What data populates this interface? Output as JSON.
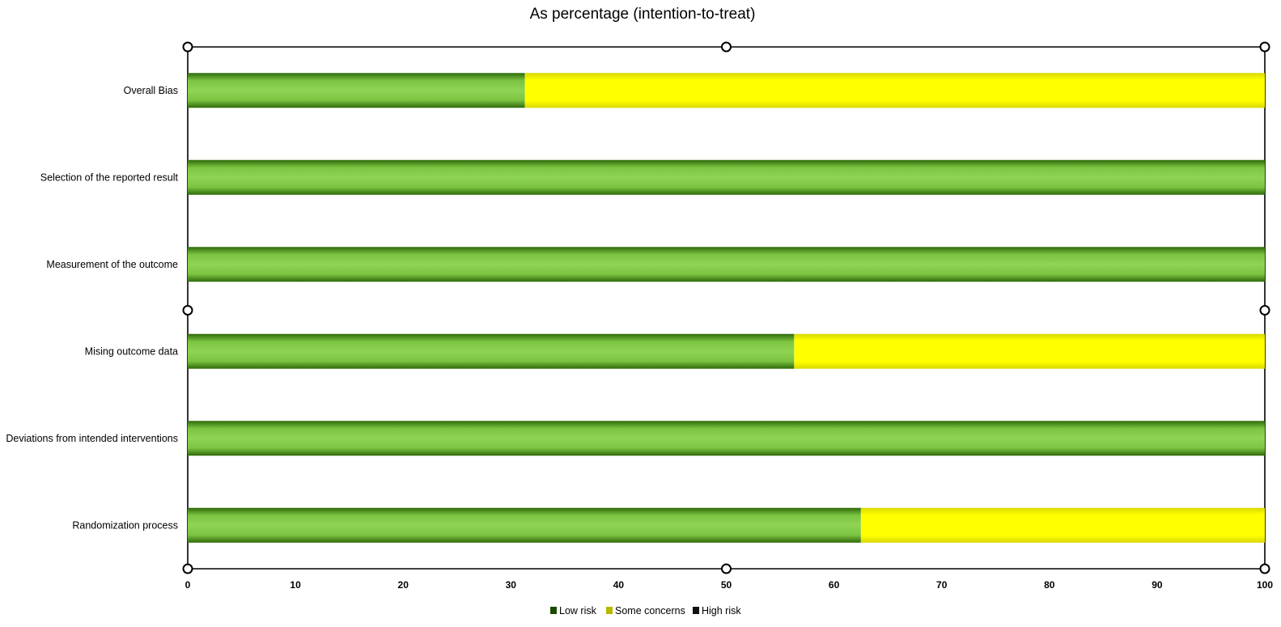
{
  "chart_data": {
    "type": "bar",
    "orientation": "horizontal",
    "stacked": true,
    "title": "As percentage (intention-to-treat)",
    "xlabel": "",
    "ylabel": "",
    "xlim": [
      0,
      100
    ],
    "xticks": [
      0,
      10,
      20,
      30,
      40,
      50,
      60,
      70,
      80,
      90,
      100
    ],
    "xtick_labels": [
      "0",
      "10",
      "20",
      "30",
      "40",
      "50",
      "60",
      "70",
      "80",
      "90",
      "100"
    ],
    "categories": [
      "Overall Bias",
      "Selection of the reported result",
      "Measurement of the outcome",
      "Mising outcome data",
      "Deviations from intended interventions",
      "Randomization process"
    ],
    "series": [
      {
        "name": "Low risk",
        "color": "#8bd14d",
        "values": [
          31.3,
          100,
          100,
          56.3,
          100,
          62.5
        ]
      },
      {
        "name": "Some concerns",
        "color": "#ffff00",
        "values": [
          68.7,
          0,
          0,
          43.7,
          0,
          37.5
        ]
      },
      {
        "name": "High risk",
        "color": "#c00000",
        "values": [
          0,
          0,
          0,
          0,
          0,
          0
        ]
      }
    ],
    "legend": {
      "position": "bottom",
      "swatch_colors": [
        "#1a4a00",
        "#b8b800",
        "#101010"
      ]
    },
    "grid": false
  }
}
